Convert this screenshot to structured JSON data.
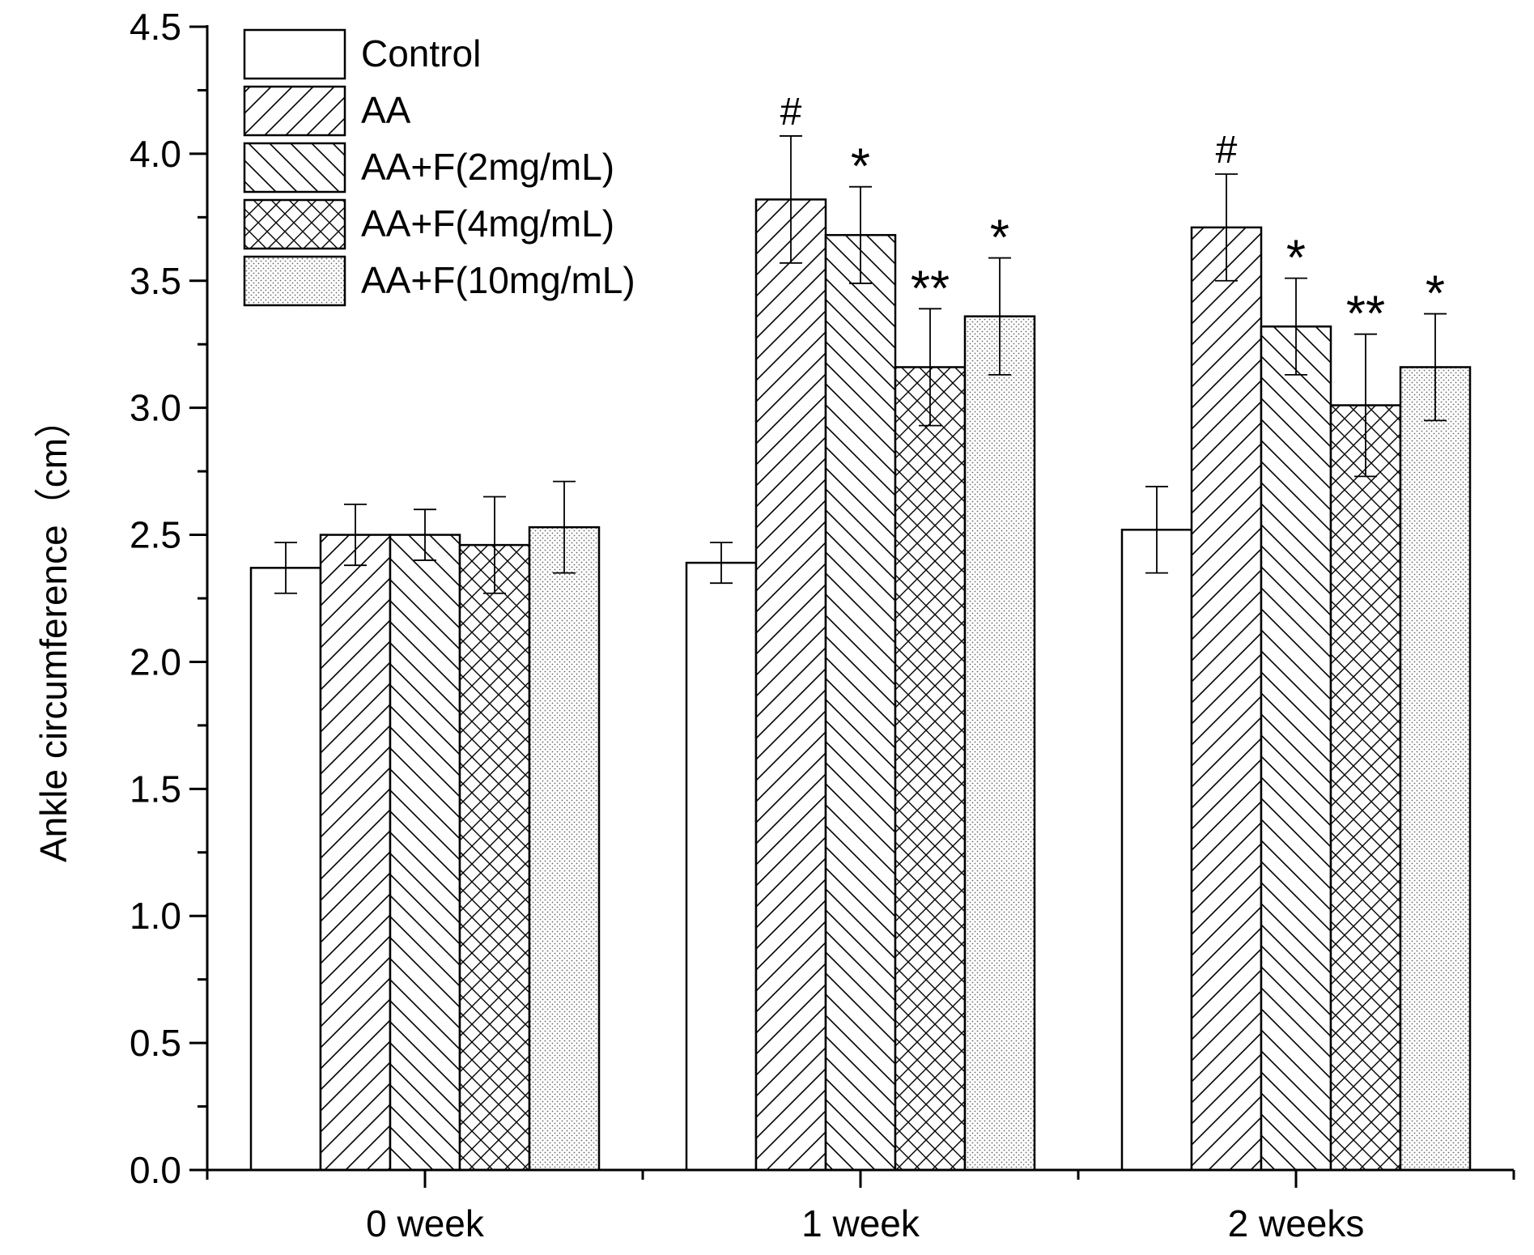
{
  "chart_data": {
    "type": "bar",
    "title": "",
    "xlabel": "",
    "ylabel": "Ankle circumference（cm）",
    "ylim": [
      0,
      4.5
    ],
    "yticks": [
      "0.0",
      "0.5",
      "1.0",
      "1.5",
      "2.0",
      "2.5",
      "3.0",
      "3.5",
      "4.0",
      "4.5"
    ],
    "categories": [
      "0 week",
      "1 week",
      "2 weeks"
    ],
    "legend_position": "top-left",
    "series": [
      {
        "name": "Control",
        "pattern": "none",
        "values": [
          2.37,
          2.39,
          2.52
        ],
        "errors": [
          0.1,
          0.08,
          0.17
        ],
        "annotations": [
          "",
          "",
          ""
        ]
      },
      {
        "name": "AA",
        "pattern": "diagonal-forward",
        "values": [
          2.5,
          3.82,
          3.71
        ],
        "errors": [
          0.12,
          0.25,
          0.21
        ],
        "annotations": [
          "",
          "#",
          "#"
        ]
      },
      {
        "name": "AA+F(2mg/mL)",
        "pattern": "diagonal-back",
        "values": [
          2.5,
          3.68,
          3.32
        ],
        "errors": [
          0.1,
          0.19,
          0.19
        ],
        "annotations": [
          "",
          "*",
          "*"
        ]
      },
      {
        "name": "AA+F(4mg/mL)",
        "pattern": "crosshatch",
        "values": [
          2.46,
          3.16,
          3.01
        ],
        "errors": [
          0.19,
          0.23,
          0.28
        ],
        "annotations": [
          "",
          "**",
          "**"
        ]
      },
      {
        "name": "AA+F(10mg/mL)",
        "pattern": "dots",
        "values": [
          2.53,
          3.36,
          3.16
        ],
        "errors": [
          0.18,
          0.23,
          0.21
        ],
        "annotations": [
          "",
          "*",
          "*"
        ]
      }
    ]
  }
}
